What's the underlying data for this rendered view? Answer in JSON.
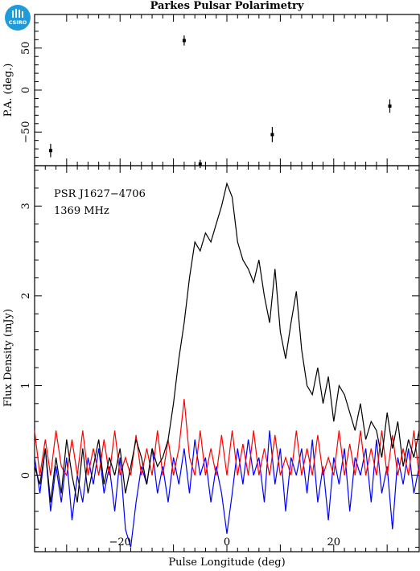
{
  "title": "Parkes Pulsar Polarimetry",
  "logo": {
    "text": "CSIRO",
    "color": "#1e9bd8"
  },
  "chart_data": [
    {
      "type": "scatter",
      "panel": "top",
      "ylabel": "P.A. (deg.)",
      "xlim": [
        -36,
        36
      ],
      "ylim": [
        -90,
        90
      ],
      "yticks": [
        -50,
        0,
        50
      ],
      "ytick_labels": [
        "−50",
        "0",
        "50"
      ],
      "points": [
        {
          "x": -33,
          "y": -72,
          "err": 8
        },
        {
          "x": -8,
          "y": 59,
          "err": 6
        },
        {
          "x": -5,
          "y": -88,
          "err": 5
        },
        {
          "x": 8.5,
          "y": -53,
          "err": 9
        },
        {
          "x": 30.5,
          "y": -19,
          "err": 8
        }
      ]
    },
    {
      "type": "line",
      "panel": "bottom",
      "xlabel": "Pulse Longitude (deg)",
      "ylabel": "Flux Density (mJy)",
      "xlim": [
        -36,
        36
      ],
      "ylim": [
        -0.85,
        3.45
      ],
      "xticks": [
        -20,
        0,
        20
      ],
      "xtick_labels": [
        "−20",
        "0",
        "20"
      ],
      "yticks": [
        0,
        1,
        2,
        3
      ],
      "ytick_labels": [
        "0",
        "1",
        "2",
        "3"
      ],
      "annotations": [
        "PSR J1627−4706",
        "1369 MHz"
      ],
      "series": [
        {
          "color": "#000000",
          "x": [
            -36,
            -35,
            -34,
            -33,
            -32,
            -31,
            -30,
            -29,
            -28,
            -27,
            -26,
            -25,
            -24,
            -23,
            -22,
            -21,
            -20,
            -19,
            -18,
            -17,
            -16,
            -15,
            -14,
            -13,
            -12,
            -11,
            -10,
            -9,
            -8,
            -7,
            -6,
            -5,
            -4,
            -3,
            -2,
            -1,
            0,
            1,
            2,
            3,
            4,
            5,
            6,
            7,
            8,
            9,
            10,
            11,
            12,
            13,
            14,
            15,
            16,
            17,
            18,
            19,
            20,
            21,
            22,
            23,
            24,
            25,
            26,
            27,
            28,
            29,
            30,
            31,
            32,
            33,
            34,
            35,
            36
          ],
          "y": [
            0.1,
            -0.1,
            0.3,
            -0.3,
            0.2,
            -0.2,
            0.4,
            0.0,
            -0.3,
            0.3,
            -0.2,
            0.1,
            0.4,
            -0.1,
            0.2,
            0.0,
            0.3,
            -0.2,
            0.1,
            0.4,
            0.2,
            -0.1,
            0.3,
            0.1,
            0.2,
            0.4,
            0.8,
            1.3,
            1.7,
            2.2,
            2.6,
            2.5,
            2.7,
            2.6,
            2.8,
            3.0,
            3.25,
            3.1,
            2.6,
            2.4,
            2.3,
            2.15,
            2.4,
            2.0,
            1.7,
            2.3,
            1.6,
            1.3,
            1.7,
            2.05,
            1.4,
            1.0,
            0.9,
            1.2,
            0.8,
            1.1,
            0.6,
            1.0,
            0.9,
            0.7,
            0.5,
            0.8,
            0.4,
            0.6,
            0.5,
            0.2,
            0.7,
            0.3,
            0.6,
            0.1,
            0.4,
            0.2,
            0.5
          ]
        },
        {
          "color": "#ff0000",
          "x": [
            -36,
            -35,
            -34,
            -33,
            -32,
            -31,
            -30,
            -29,
            -28,
            -27,
            -26,
            -25,
            -24,
            -23,
            -22,
            -21,
            -20,
            -19,
            -18,
            -17,
            -16,
            -15,
            -14,
            -13,
            -12,
            -11,
            -10,
            -9,
            -8,
            -7,
            -6,
            -5,
            -4,
            -3,
            -2,
            -1,
            0,
            1,
            2,
            3,
            4,
            5,
            6,
            7,
            8,
            9,
            10,
            11,
            12,
            13,
            14,
            15,
            16,
            17,
            18,
            19,
            20,
            21,
            22,
            23,
            24,
            25,
            26,
            27,
            28,
            29,
            30,
            31,
            32,
            33,
            34,
            35,
            36
          ],
          "y": [
            0.5,
            0.0,
            0.4,
            0.0,
            0.5,
            0.1,
            0.0,
            0.4,
            0.0,
            0.5,
            0.0,
            0.3,
            0.0,
            0.4,
            0.0,
            0.5,
            0.0,
            0.2,
            0.0,
            0.45,
            0.0,
            0.3,
            0.0,
            0.5,
            0.0,
            0.4,
            0.0,
            0.3,
            0.85,
            0.2,
            0.0,
            0.5,
            0.0,
            0.3,
            0.0,
            0.45,
            0.0,
            0.5,
            0.0,
            0.35,
            0.0,
            0.5,
            0.0,
            0.3,
            0.0,
            0.45,
            0.0,
            0.2,
            0.0,
            0.5,
            0.0,
            0.3,
            0.0,
            0.45,
            0.0,
            0.2,
            0.0,
            0.5,
            0.0,
            0.35,
            0.0,
            0.5,
            0.0,
            0.3,
            0.0,
            0.5,
            0.0,
            0.45,
            0.0,
            0.3,
            0.0,
            0.5,
            0.0
          ]
        },
        {
          "color": "#0000ff",
          "x": [
            -36,
            -35,
            -34,
            -33,
            -32,
            -31,
            -30,
            -29,
            -28,
            -27,
            -26,
            -25,
            -24,
            -23,
            -22,
            -21,
            -20,
            -19,
            -18,
            -17,
            -16,
            -15,
            -14,
            -13,
            -12,
            -11,
            -10,
            -9,
            -8,
            -7,
            -6,
            -5,
            -4,
            -3,
            -2,
            -1,
            0,
            1,
            2,
            3,
            4,
            5,
            6,
            7,
            8,
            9,
            10,
            11,
            12,
            13,
            14,
            15,
            16,
            17,
            18,
            19,
            20,
            21,
            22,
            23,
            24,
            25,
            26,
            27,
            28,
            29,
            30,
            31,
            32,
            33,
            34,
            35,
            36
          ],
          "y": [
            0.2,
            -0.2,
            0.3,
            -0.4,
            0.1,
            -0.3,
            0.2,
            -0.5,
            0.0,
            -0.3,
            0.2,
            -0.1,
            0.3,
            -0.2,
            0.1,
            -0.4,
            0.2,
            -0.6,
            -0.8,
            -0.3,
            0.1,
            -0.1,
            0.3,
            -0.2,
            0.1,
            -0.3,
            0.2,
            -0.1,
            0.3,
            -0.2,
            0.4,
            0.0,
            0.2,
            -0.3,
            0.1,
            -0.2,
            -0.65,
            -0.2,
            0.3,
            -0.1,
            0.4,
            0.0,
            0.2,
            -0.3,
            0.5,
            -0.1,
            0.3,
            -0.4,
            0.2,
            0.0,
            0.3,
            -0.2,
            0.4,
            -0.3,
            0.1,
            -0.5,
            0.2,
            -0.1,
            0.3,
            -0.4,
            0.2,
            0.0,
            0.3,
            -0.3,
            0.4,
            -0.2,
            0.1,
            -0.6,
            0.2,
            -0.1,
            0.3,
            -0.2,
            0.1
          ]
        }
      ]
    }
  ]
}
